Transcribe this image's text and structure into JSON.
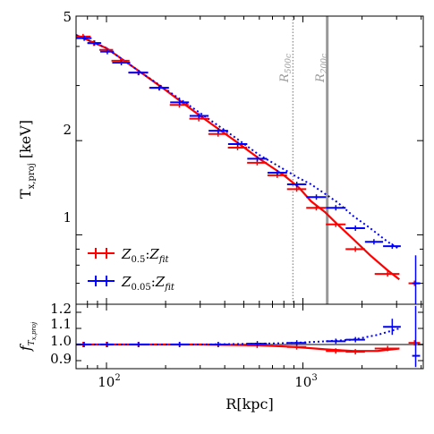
{
  "chart_data": [
    {
      "panel": "main",
      "type": "scatter",
      "xlabel": "R[kpc]",
      "ylabel": "T_x,proj [keV]",
      "xscale": "log",
      "yscale": "log",
      "xlim": [
        70,
        4100
      ],
      "ylim": [
        0.6,
        5
      ],
      "y_ticks": [
        "1",
        "2",
        "5"
      ],
      "vlines": [
        {
          "name": "R500c",
          "x": 890,
          "style": "dotted",
          "color": "#999999"
        },
        {
          "name": "R200c",
          "x": 1330,
          "style": "solid",
          "color": "#999999"
        }
      ],
      "legend": {
        "position": "lower-left",
        "entries": [
          {
            "main": "Z",
            "sub": "0.5",
            "sep": ":",
            "main2": "Z",
            "sub2": "fit",
            "color": "#ff0000"
          },
          {
            "main": "Z",
            "sub": "0.05",
            "sep": ":",
            "main2": "Z",
            "sub2": "fit",
            "color": "#0000ff"
          }
        ]
      },
      "series": [
        {
          "name": "Z_0.5 : Z_fit",
          "color": "#ff0000",
          "points": [
            {
              "x": 76,
              "y": 4.3,
              "xlo": 70,
              "xhi": 83
            },
            {
              "x": 86,
              "y": 4.1,
              "xlo": 80,
              "xhi": 93
            },
            {
              "x": 100,
              "y": 3.9,
              "xlo": 92,
              "xhi": 108
            },
            {
              "x": 118,
              "y": 3.6,
              "xlo": 106,
              "xhi": 131
            },
            {
              "x": 145,
              "y": 3.3,
              "xlo": 129,
              "xhi": 162
            },
            {
              "x": 185,
              "y": 2.95,
              "xlo": 165,
              "xhi": 207
            },
            {
              "x": 235,
              "y": 2.6,
              "xlo": 210,
              "xhi": 262
            },
            {
              "x": 295,
              "y": 2.35,
              "xlo": 264,
              "xhi": 330
            },
            {
              "x": 370,
              "y": 2.1,
              "xlo": 330,
              "xhi": 415
            },
            {
              "x": 465,
              "y": 1.9,
              "xlo": 415,
              "xhi": 520
            },
            {
              "x": 585,
              "y": 1.7,
              "xlo": 520,
              "xhi": 655
            },
            {
              "x": 740,
              "y": 1.55,
              "xlo": 660,
              "xhi": 830
            },
            {
              "x": 930,
              "y": 1.4,
              "xlo": 830,
              "xhi": 1040
            },
            {
              "x": 1170,
              "y": 1.22,
              "xlo": 1040,
              "xhi": 1310
            },
            {
              "x": 1470,
              "y": 1.08,
              "xlo": 1310,
              "xhi": 1650
            },
            {
              "x": 1850,
              "y": 0.9,
              "xlo": 1650,
              "xhi": 2070
            },
            {
              "x": 2700,
              "y": 0.75,
              "xlo": 2320,
              "xhi": 3100
            },
            {
              "x": 3700,
              "y": 0.7,
              "xlo": 3450,
              "xhi": 3950
            }
          ]
        },
        {
          "name": "Z_0.05 : Z_fit",
          "color": "#0000ff",
          "points": [
            {
              "x": 77,
              "y": 4.25,
              "xlo": 70,
              "xhi": 84
            },
            {
              "x": 87,
              "y": 4.1,
              "xlo": 80,
              "xhi": 94
            },
            {
              "x": 101,
              "y": 3.85,
              "xlo": 93,
              "xhi": 109
            },
            {
              "x": 119,
              "y": 3.55,
              "xlo": 107,
              "xhi": 132
            },
            {
              "x": 146,
              "y": 3.3,
              "xlo": 130,
              "xhi": 163
            },
            {
              "x": 186,
              "y": 2.95,
              "xlo": 166,
              "xhi": 208
            },
            {
              "x": 236,
              "y": 2.65,
              "xlo": 211,
              "xhi": 263
            },
            {
              "x": 296,
              "y": 2.4,
              "xlo": 265,
              "xhi": 331
            },
            {
              "x": 371,
              "y": 2.15,
              "xlo": 331,
              "xhi": 416
            },
            {
              "x": 466,
              "y": 1.95,
              "xlo": 416,
              "xhi": 521
            },
            {
              "x": 586,
              "y": 1.75,
              "xlo": 521,
              "xhi": 656
            },
            {
              "x": 741,
              "y": 1.58,
              "xlo": 661,
              "xhi": 831
            },
            {
              "x": 931,
              "y": 1.45,
              "xlo": 831,
              "xhi": 1041
            },
            {
              "x": 1171,
              "y": 1.32,
              "xlo": 1041,
              "xhi": 1311
            },
            {
              "x": 1471,
              "y": 1.22,
              "xlo": 1311,
              "xhi": 1651
            },
            {
              "x": 1851,
              "y": 1.05,
              "xlo": 1651,
              "xhi": 2071
            },
            {
              "x": 2300,
              "y": 0.95,
              "xlo": 2070,
              "xhi": 2560
            },
            {
              "x": 2850,
              "y": 0.92,
              "xlo": 2560,
              "xhi": 3150
            },
            {
              "x": 3750,
              "y": 0.7,
              "xlo": 3600,
              "xhi": 3950,
              "ylo": 0.6,
              "yhi": 0.86
            }
          ]
        }
      ],
      "lines": [
        {
          "name": "Z_0.5 : Z_fit fit",
          "color": "#ff0000",
          "style": "solid",
          "points": [
            [
              70,
              4.35
            ],
            [
              100,
              3.95
            ],
            [
              150,
              3.3
            ],
            [
              200,
              2.9
            ],
            [
              300,
              2.4
            ],
            [
              450,
              2.0
            ],
            [
              600,
              1.75
            ],
            [
              800,
              1.55
            ],
            [
              950,
              1.42
            ],
            [
              1100,
              1.28
            ],
            [
              1300,
              1.18
            ],
            [
              1500,
              1.08
            ],
            [
              1800,
              0.97
            ],
            [
              2200,
              0.86
            ],
            [
              2700,
              0.77
            ],
            [
              3100,
              0.72
            ]
          ]
        },
        {
          "name": "Z_0.05 : Z_fit fit",
          "color": "#0000ff",
          "style": "dotted",
          "points": [
            [
              70,
              4.35
            ],
            [
              100,
              3.95
            ],
            [
              150,
              3.3
            ],
            [
              200,
              2.92
            ],
            [
              300,
              2.45
            ],
            [
              450,
              2.05
            ],
            [
              600,
              1.8
            ],
            [
              800,
              1.62
            ],
            [
              950,
              1.52
            ],
            [
              1100,
              1.45
            ],
            [
              1300,
              1.35
            ],
            [
              1500,
              1.27
            ],
            [
              1800,
              1.15
            ],
            [
              2200,
              1.05
            ],
            [
              2700,
              0.95
            ],
            [
              3100,
              0.9
            ]
          ]
        }
      ]
    },
    {
      "panel": "ratio",
      "type": "scatter",
      "xlabel": "R[kpc]",
      "ylabel": "f_T_x,proj",
      "xscale": "log",
      "xlim": [
        70,
        4100
      ],
      "ylim": [
        0.85,
        1.25
      ],
      "x_ticks": [
        "10",
        "2",
        "10",
        "3"
      ],
      "y_ticks": [
        "0.9",
        "1.0",
        "1.1",
        "1.2"
      ],
      "reference_line": 1.0,
      "series": [
        {
          "name": "Z_0.5 : Z_fit",
          "color": "#ff0000",
          "points": [
            {
              "x": 76,
              "y": 1.0,
              "xlo": 70,
              "xhi": 83
            },
            {
              "x": 100,
              "y": 1.0,
              "xlo": 92,
              "xhi": 108
            },
            {
              "x": 145,
              "y": 1.0,
              "xlo": 129,
              "xhi": 162
            },
            {
              "x": 235,
              "y": 1.0,
              "xlo": 210,
              "xhi": 262
            },
            {
              "x": 370,
              "y": 1.0,
              "xlo": 330,
              "xhi": 415
            },
            {
              "x": 585,
              "y": 0.995,
              "xlo": 520,
              "xhi": 655
            },
            {
              "x": 930,
              "y": 0.985,
              "xlo": 830,
              "xhi": 1040
            },
            {
              "x": 1470,
              "y": 0.96,
              "xlo": 1310,
              "xhi": 1650
            },
            {
              "x": 1850,
              "y": 0.955,
              "xlo": 1650,
              "xhi": 2070
            },
            {
              "x": 2700,
              "y": 0.975,
              "xlo": 2320,
              "xhi": 3100
            },
            {
              "x": 3700,
              "y": 1.01,
              "xlo": 3450,
              "xhi": 3950
            }
          ]
        },
        {
          "name": "Z_0.05 : Z_fit",
          "color": "#0000ff",
          "points": [
            {
              "x": 77,
              "y": 1.0,
              "xlo": 70,
              "xhi": 84
            },
            {
              "x": 101,
              "y": 1.0,
              "xlo": 93,
              "xhi": 109
            },
            {
              "x": 146,
              "y": 1.0,
              "xlo": 130,
              "xhi": 163
            },
            {
              "x": 236,
              "y": 1.0,
              "xlo": 211,
              "xhi": 263
            },
            {
              "x": 371,
              "y": 1.0,
              "xlo": 331,
              "xhi": 416
            },
            {
              "x": 586,
              "y": 1.005,
              "xlo": 521,
              "xhi": 656
            },
            {
              "x": 931,
              "y": 1.01,
              "xlo": 831,
              "xhi": 1041
            },
            {
              "x": 1471,
              "y": 1.02,
              "xlo": 1311,
              "xhi": 1651
            },
            {
              "x": 1851,
              "y": 1.03,
              "xlo": 1651,
              "xhi": 2071
            },
            {
              "x": 2850,
              "y": 1.11,
              "xlo": 2560,
              "xhi": 3150,
              "ylo": 1.06,
              "yhi": 1.16
            },
            {
              "x": 3750,
              "y": 0.93,
              "xlo": 3600,
              "xhi": 3950,
              "ylo": 0.86,
              "yhi": 1.24
            }
          ]
        }
      ],
      "lines": [
        {
          "name": "Z_0.5 : Z_fit ratio",
          "color": "#ff0000",
          "style": "solid",
          "points": [
            [
              70,
              1.0
            ],
            [
              300,
              1.0
            ],
            [
              600,
              0.995
            ],
            [
              900,
              0.985
            ],
            [
              1300,
              0.97
            ],
            [
              1800,
              0.96
            ],
            [
              2400,
              0.96
            ],
            [
              3100,
              0.975
            ]
          ]
        },
        {
          "name": "Z_0.05 : Z_fit ratio",
          "color": "#0000ff",
          "style": "dotted",
          "points": [
            [
              70,
              1.0
            ],
            [
              300,
              1.0
            ],
            [
              600,
              1.005
            ],
            [
              900,
              1.01
            ],
            [
              1300,
              1.02
            ],
            [
              1800,
              1.03
            ],
            [
              2400,
              1.06
            ],
            [
              3100,
              1.1
            ]
          ]
        }
      ]
    }
  ]
}
